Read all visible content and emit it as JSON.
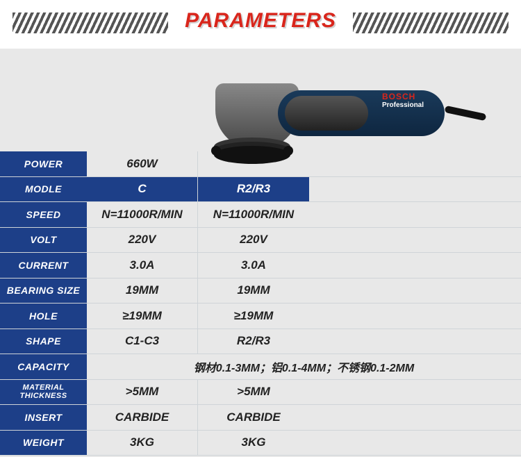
{
  "title": "PARAMETERS",
  "product": {
    "brand": "BOSCH",
    "line": "Professional"
  },
  "colors": {
    "accent": "#1d3f88",
    "title": "#d9261c",
    "background": "#e8e8e8",
    "border": "#cfd4d8",
    "text": "#222222"
  },
  "columns": [
    "C",
    "R2/R3"
  ],
  "rows": [
    {
      "label": "POWER",
      "c": "660W",
      "r": ""
    },
    {
      "label": "MODLE",
      "c": "C",
      "r": "R2/R3"
    },
    {
      "label": "SPEED",
      "c": "N=11000R/MIN",
      "r": "N=11000R/MIN"
    },
    {
      "label": "VOLT",
      "c": "220V",
      "r": "220V"
    },
    {
      "label": "CURRENT",
      "c": "3.0A",
      "r": "3.0A"
    },
    {
      "label": "BEARING SIZE",
      "c": "19MM",
      "r": "19MM"
    },
    {
      "label": "HOLE",
      "c": "≥19MM",
      "r": "≥19MM"
    },
    {
      "label": "SHAPE",
      "c": "C1-C3",
      "r": "R2/R3"
    },
    {
      "label": "CAPACITY",
      "wide": "钢材0.1-3MM；铝0.1-4MM；不锈钢0.1-2MM"
    },
    {
      "label": "MATERIAL THICKNESS",
      "c": ">5MM",
      "r": ">5MM"
    },
    {
      "label": "INSERT",
      "c": "CARBIDE",
      "r": "CARBIDE"
    },
    {
      "label": "WEIGHT",
      "c": "3KG",
      "r": "3KG"
    }
  ],
  "font_sizes": {
    "title": 30,
    "label": 14,
    "value": 17,
    "small_label": 12
  }
}
